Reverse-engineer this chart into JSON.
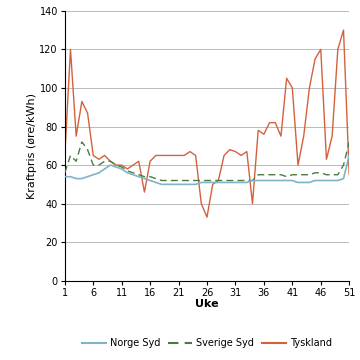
{
  "xlabel": "Uke",
  "ylabel": "Kraftpris (øre/kWh)",
  "ylim": [
    0,
    140
  ],
  "yticks": [
    0,
    20,
    40,
    60,
    80,
    100,
    120,
    140
  ],
  "xticks": [
    1,
    6,
    11,
    16,
    21,
    26,
    31,
    36,
    41,
    46,
    51
  ],
  "weeks": [
    1,
    2,
    3,
    4,
    5,
    6,
    7,
    8,
    9,
    10,
    11,
    12,
    13,
    14,
    15,
    16,
    17,
    18,
    19,
    20,
    21,
    22,
    23,
    24,
    25,
    26,
    27,
    28,
    29,
    30,
    31,
    32,
    33,
    34,
    35,
    36,
    37,
    38,
    39,
    40,
    41,
    42,
    43,
    44,
    45,
    46,
    47,
    48,
    49,
    50,
    51
  ],
  "norge_syd": [
    54,
    54,
    53,
    53,
    54,
    55,
    56,
    58,
    60,
    59,
    58,
    56,
    55,
    54,
    53,
    52,
    51,
    50,
    50,
    50,
    50,
    50,
    50,
    50,
    51,
    51,
    51,
    51,
    51,
    51,
    51,
    51,
    51,
    52,
    52,
    52,
    52,
    52,
    52,
    52,
    52,
    51,
    51,
    51,
    52,
    52,
    52,
    52,
    52,
    53,
    65
  ],
  "sverige_syd": [
    56,
    65,
    62,
    72,
    68,
    60,
    60,
    62,
    62,
    60,
    59,
    57,
    56,
    55,
    54,
    54,
    53,
    52,
    52,
    52,
    52,
    52,
    52,
    52,
    52,
    52,
    52,
    52,
    52,
    52,
    52,
    52,
    52,
    52,
    55,
    55,
    55,
    55,
    55,
    54,
    55,
    55,
    55,
    55,
    56,
    56,
    55,
    55,
    55,
    60,
    72
  ],
  "tyskland": [
    65,
    120,
    75,
    93,
    87,
    65,
    63,
    65,
    62,
    60,
    60,
    58,
    60,
    62,
    46,
    62,
    65,
    65,
    65,
    65,
    65,
    65,
    67,
    65,
    40,
    33,
    50,
    52,
    65,
    68,
    67,
    65,
    67,
    40,
    78,
    76,
    82,
    82,
    75,
    105,
    100,
    60,
    75,
    100,
    115,
    120,
    63,
    75,
    120,
    130,
    55
  ],
  "norge_color": "#7eb3c9",
  "sverige_color": "#4a7c3f",
  "tyskland_color": "#d4613c",
  "background_color": "#ffffff",
  "grid_color": "#b0b0b0"
}
